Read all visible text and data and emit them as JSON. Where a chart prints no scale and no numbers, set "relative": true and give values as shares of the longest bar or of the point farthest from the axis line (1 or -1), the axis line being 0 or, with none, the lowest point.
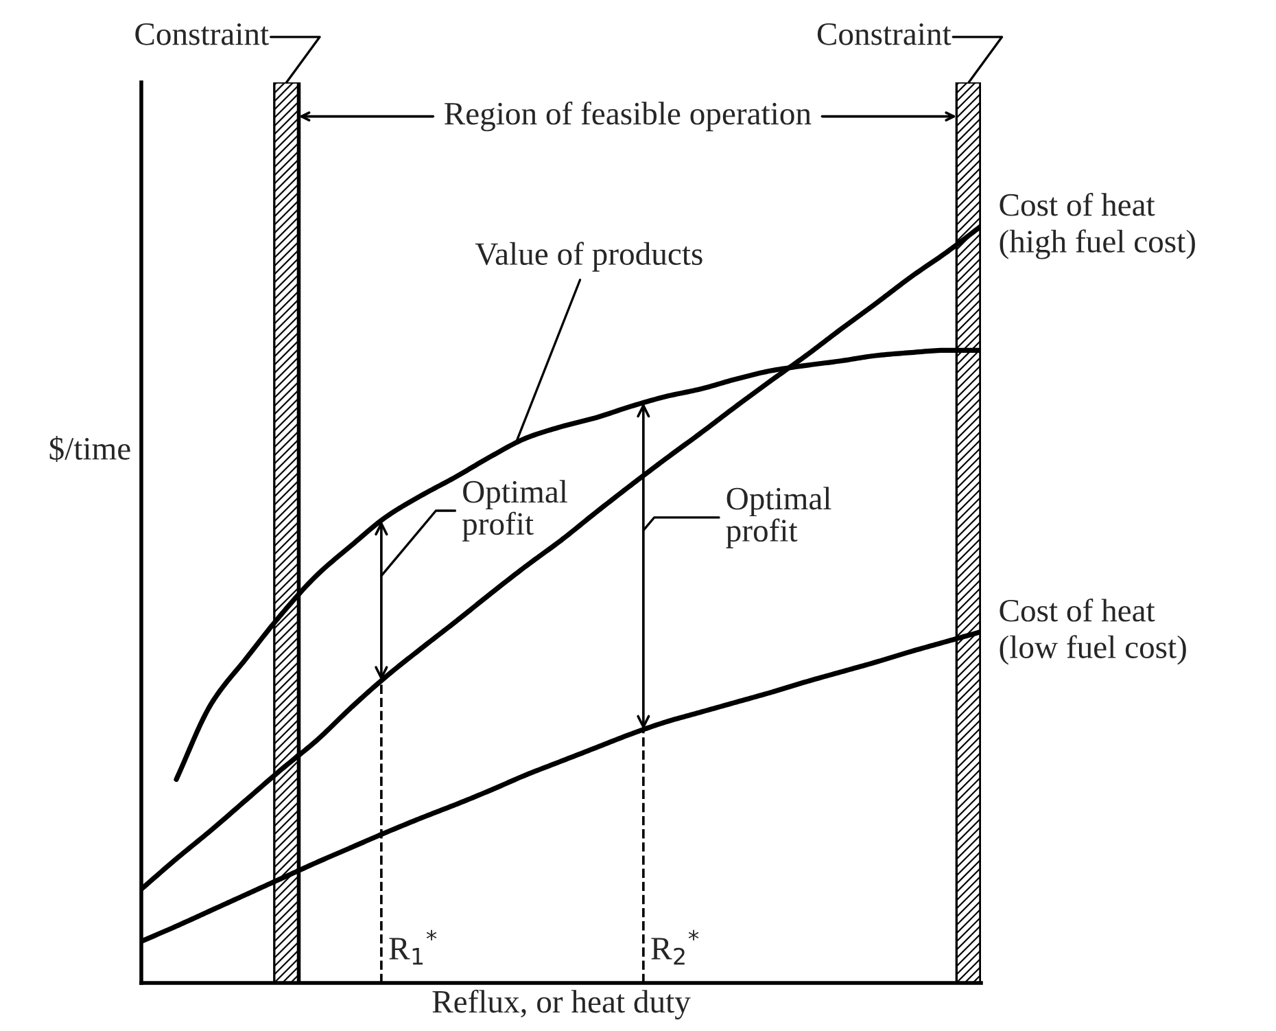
{
  "chart_data": {
    "type": "line",
    "relative": true,
    "legend": "right",
    "xlabel": "Reflux, or heat duty",
    "ylabel": "$/time",
    "categories": [
      null,
      null,
      null,
      null,
      null,
      null,
      null,
      null,
      null,
      null,
      null,
      null,
      null,
      null,
      null,
      null,
      null,
      null,
      null,
      null,
      null,
      null,
      null,
      null,
      null
    ],
    "series": [
      {
        "name": "Value of products",
        "color": "#000000",
        "values": [
          null,
          0.269,
          0.369,
          0.429,
          0.487,
          0.538,
          0.578,
          0.616,
          0.644,
          0.669,
          0.696,
          0.72,
          0.735,
          0.747,
          0.762,
          0.775,
          0.785,
          0.798,
          0.809,
          0.816,
          0.822,
          0.829,
          0.833,
          0.836,
          0.836
        ]
      },
      {
        "name": "Cost of heat\n(high fuel cost)",
        "color": "#000000",
        "values": [
          0.124,
          0.164,
          0.202,
          0.242,
          0.282,
          0.32,
          0.364,
          0.405,
          0.442,
          0.478,
          0.515,
          0.551,
          0.585,
          0.622,
          0.658,
          0.693,
          0.727,
          0.762,
          0.796,
          0.829,
          0.864,
          0.898,
          0.933,
          0.965,
          1.0
        ]
      },
      {
        "name": "Cost of heat\n(low fuel cost)",
        "color": "#000000",
        "values": [
          0.055,
          0.075,
          0.096,
          0.117,
          0.138,
          0.159,
          0.179,
          0.199,
          0.218,
          0.236,
          0.255,
          0.275,
          0.293,
          0.311,
          0.329,
          0.345,
          0.358,
          0.371,
          0.384,
          0.398,
          0.411,
          0.424,
          0.438,
          0.451,
          0.464
        ]
      }
    ],
    "annotations": [
      "Constraint",
      "Constraint",
      "Region of feasible operation",
      "Optimal\nprofit",
      "Optimal\nprofit",
      "R$_{1}$$^{*}$",
      "R$_{2}$$^{*}$"
    ]
  }
}
